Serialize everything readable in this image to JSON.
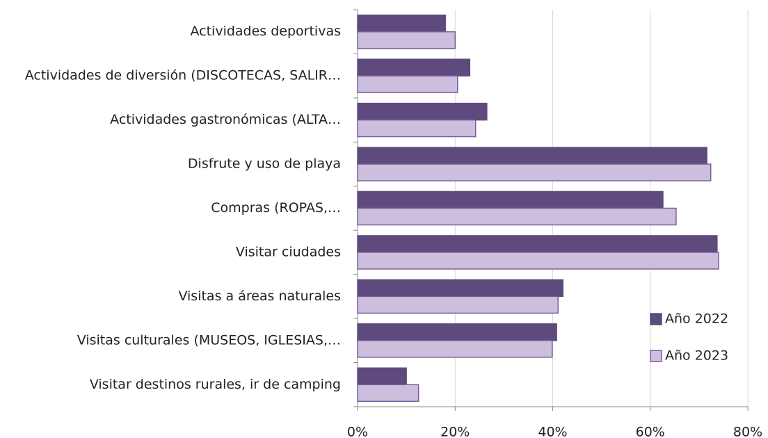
{
  "chart_data": {
    "type": "bar",
    "orientation": "horizontal",
    "categories": [
      "Actividades deportivas",
      "Actividades de diversión (DISCOTECAS, SALIR…",
      "Actividades gastronómicas (ALTA…",
      "Disfrute y uso de playa",
      "Compras (ROPAS,…",
      "Visitar ciudades",
      "Visitas a áreas naturales",
      "Visitas culturales (MUSEOS, IGLESIAS,…",
      "Visitar destinos rurales, ir de camping"
    ],
    "series": [
      {
        "name": "Año 2022",
        "color": "#5f4a7e",
        "values": [
          18,
          23,
          26.5,
          71.6,
          62.6,
          73.7,
          42.1,
          40.8,
          10
        ]
      },
      {
        "name": "Año 2023",
        "color": "#cbbfdd",
        "values": [
          20,
          20.5,
          24.2,
          72.4,
          65.3,
          74,
          41.1,
          39.9,
          12.5
        ]
      }
    ],
    "xlim": [
      0,
      80
    ],
    "xticks": [
      {
        "value": 0,
        "label": "0%"
      },
      {
        "value": 20,
        "label": "20%"
      },
      {
        "value": 40,
        "label": "40%"
      },
      {
        "value": 60,
        "label": "60%"
      },
      {
        "value": 80,
        "label": "80%"
      }
    ],
    "grid": true,
    "legend": "right"
  }
}
